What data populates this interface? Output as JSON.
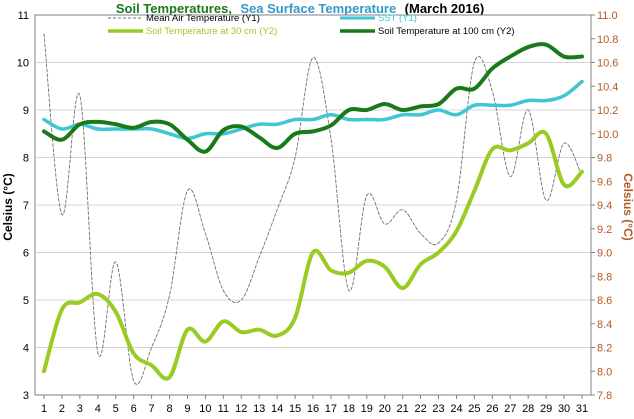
{
  "chart_data": {
    "type": "line",
    "title": {
      "part1": "Soil Temperatures,",
      "part2": "Sea Surface Temperature",
      "part3": "(March 2016)",
      "part1_color": "#1a7a1a",
      "part2_color": "#3399cc",
      "part3_color": "#000000"
    },
    "y1label": "Celsius (°C)",
    "y2label": "Celsius (°C)",
    "y2label_color": "#b05a24",
    "y1lim": [
      3,
      11
    ],
    "y2lim": [
      7.8,
      11.0
    ],
    "y1ticks": [
      "3",
      "4",
      "5",
      "6",
      "7",
      "8",
      "9",
      "10",
      "11"
    ],
    "y2ticks": [
      "7.8",
      "8.0",
      "8.2",
      "8.4",
      "8.6",
      "8.8",
      "9.0",
      "9.2",
      "9.4",
      "9.6",
      "9.8",
      "10.0",
      "10.2",
      "10.4",
      "10.6",
      "10.8",
      "11.0"
    ],
    "x": [
      1,
      2,
      3,
      4,
      5,
      6,
      7,
      8,
      9,
      10,
      11,
      12,
      13,
      14,
      15,
      16,
      17,
      18,
      19,
      20,
      21,
      22,
      23,
      24,
      25,
      26,
      27,
      28,
      29,
      30,
      31
    ],
    "xticks": [
      "1",
      "2",
      "3",
      "4",
      "5",
      "6",
      "7",
      "8",
      "9",
      "10",
      "11",
      "12",
      "13",
      "14",
      "15",
      "16",
      "17",
      "18",
      "19",
      "20",
      "21",
      "22",
      "23",
      "24",
      "25",
      "26",
      "27",
      "28",
      "29",
      "30",
      "31"
    ],
    "series": [
      {
        "name": "Mean Air Temperature (Y1)",
        "axis": "y1",
        "color": "#707070",
        "style": "dashed",
        "values": [
          10.6,
          6.8,
          9.3,
          3.9,
          5.8,
          3.3,
          4.0,
          5.1,
          7.3,
          6.4,
          5.2,
          5.0,
          5.9,
          6.9,
          8.0,
          10.1,
          8.4,
          5.2,
          7.2,
          6.6,
          6.9,
          6.4,
          6.2,
          7.1,
          10.0,
          9.4,
          7.6,
          9.0,
          7.1,
          8.3,
          7.6
        ]
      },
      {
        "name": "SST (Y1)",
        "axis": "y1",
        "color": "#3ec6d2",
        "style": "solid",
        "values": [
          8.8,
          8.6,
          8.7,
          8.6,
          8.6,
          8.6,
          8.6,
          8.5,
          8.4,
          8.5,
          8.5,
          8.6,
          8.7,
          8.7,
          8.8,
          8.8,
          8.9,
          8.8,
          8.8,
          8.8,
          8.9,
          8.9,
          9.0,
          8.9,
          9.1,
          9.1,
          9.1,
          9.2,
          9.2,
          9.3,
          9.6
        ]
      },
      {
        "name": "Soil Temperature at 30 cm (Y2)",
        "axis": "y2",
        "color": "#99cc22",
        "style": "solid",
        "values": [
          8.0,
          8.52,
          8.58,
          8.65,
          8.5,
          8.15,
          8.05,
          7.95,
          8.35,
          8.25,
          8.42,
          8.33,
          8.35,
          8.3,
          8.45,
          9.0,
          8.85,
          8.83,
          8.93,
          8.88,
          8.7,
          8.9,
          9.0,
          9.18,
          9.52,
          9.87,
          9.86,
          9.92,
          10.0,
          9.57,
          9.68
        ]
      },
      {
        "name": "Soil Temperature at 100 cm (Y2)",
        "axis": "y2",
        "color": "#1a7a1a",
        "style": "solid",
        "values": [
          10.02,
          9.95,
          10.08,
          10.1,
          10.08,
          10.05,
          10.1,
          10.08,
          9.95,
          9.85,
          10.03,
          10.06,
          9.97,
          9.88,
          10.0,
          10.02,
          10.07,
          10.2,
          10.2,
          10.25,
          10.2,
          10.23,
          10.25,
          10.38,
          10.38,
          10.55,
          10.65,
          10.73,
          10.75,
          10.65,
          10.65
        ]
      }
    ],
    "grid": {
      "horizontal": true,
      "vertical": false
    },
    "legend_position": "top"
  }
}
